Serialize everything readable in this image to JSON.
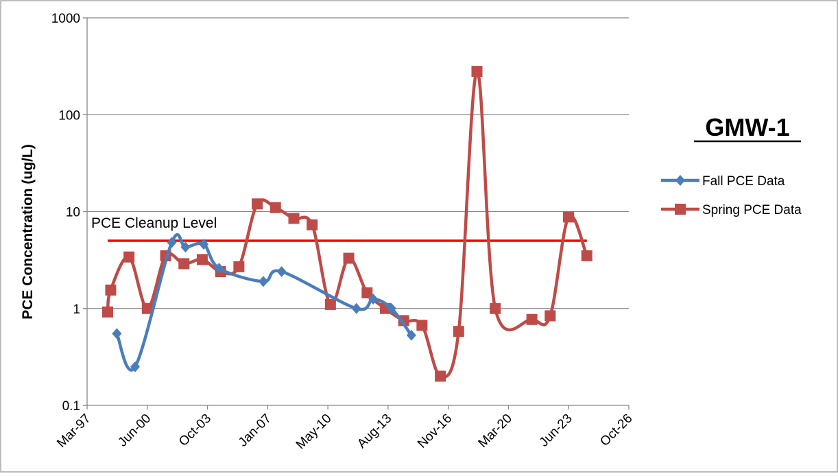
{
  "chart_data": {
    "type": "line",
    "title": "GMW-1",
    "ylabel": "PCE Concentration (ug/L)",
    "xlabel": "",
    "yscale": "log",
    "ylim": [
      0.1,
      1000
    ],
    "y_ticks": [
      "0.1",
      "1",
      "10",
      "100",
      "1000"
    ],
    "xlim": [
      "1997-03-01",
      "2026-10-01"
    ],
    "x_ticks": [
      "Mar-97",
      "Jun-00",
      "Oct-03",
      "Jan-07",
      "May-10",
      "Aug-13",
      "Nov-16",
      "Mar-20",
      "Jun-23",
      "Oct-26"
    ],
    "grid": "horizontal",
    "legend_position": "right",
    "series": [
      {
        "name": "Fall PCE Data",
        "color": "#4a7ebb",
        "marker": "diamond",
        "points": [
          {
            "x": "1998-10-15",
            "y": 0.55
          },
          {
            "x": "1999-10-15",
            "y": 0.25
          },
          {
            "x": "2001-10-15",
            "y": 4.8
          },
          {
            "x": "2002-07-15",
            "y": 4.3
          },
          {
            "x": "2003-07-15",
            "y": 4.6
          },
          {
            "x": "2004-05-15",
            "y": 2.6
          },
          {
            "x": "2006-10-15",
            "y": 1.9
          },
          {
            "x": "2007-10-15",
            "y": 2.4
          },
          {
            "x": "2011-11-15",
            "y": 1.0
          },
          {
            "x": "2012-10-15",
            "y": 1.25
          },
          {
            "x": "2013-10-15",
            "y": 1.0
          },
          {
            "x": "2014-11-15",
            "y": 0.53
          }
        ]
      },
      {
        "name": "Spring PCE Data",
        "color": "#be4b48",
        "marker": "square",
        "points": [
          {
            "x": "1998-04-15",
            "y": 0.92
          },
          {
            "x": "1998-06-15",
            "y": 1.55
          },
          {
            "x": "1999-06-15",
            "y": 3.4
          },
          {
            "x": "2000-06-15",
            "y": 1.0
          },
          {
            "x": "2001-06-15",
            "y": 3.5
          },
          {
            "x": "2002-06-15",
            "y": 2.9
          },
          {
            "x": "2003-06-15",
            "y": 3.2
          },
          {
            "x": "2004-06-15",
            "y": 2.4
          },
          {
            "x": "2005-06-15",
            "y": 2.7
          },
          {
            "x": "2006-06-15",
            "y": 12
          },
          {
            "x": "2007-06-15",
            "y": 11
          },
          {
            "x": "2008-06-15",
            "y": 8.5
          },
          {
            "x": "2009-06-15",
            "y": 7.3
          },
          {
            "x": "2010-06-15",
            "y": 1.1
          },
          {
            "x": "2011-06-15",
            "y": 3.3
          },
          {
            "x": "2012-06-15",
            "y": 1.45
          },
          {
            "x": "2013-06-15",
            "y": 1.0
          },
          {
            "x": "2014-06-15",
            "y": 0.75
          },
          {
            "x": "2015-06-15",
            "y": 0.67
          },
          {
            "x": "2016-06-15",
            "y": 0.2
          },
          {
            "x": "2017-06-15",
            "y": 0.58
          },
          {
            "x": "2018-06-15",
            "y": 280
          },
          {
            "x": "2019-06-15",
            "y": 1.0
          },
          {
            "x": "2021-06-15",
            "y": 0.77
          },
          {
            "x": "2022-06-15",
            "y": 0.84
          },
          {
            "x": "2023-06-15",
            "y": 8.8
          },
          {
            "x": "2024-06-15",
            "y": 3.5
          }
        ]
      }
    ],
    "reference_line": {
      "label": "PCE Cleanup Level",
      "value": 5,
      "color": "#ff0000",
      "x_start": "1998-04-15",
      "x_end": "2024-06-15"
    }
  }
}
